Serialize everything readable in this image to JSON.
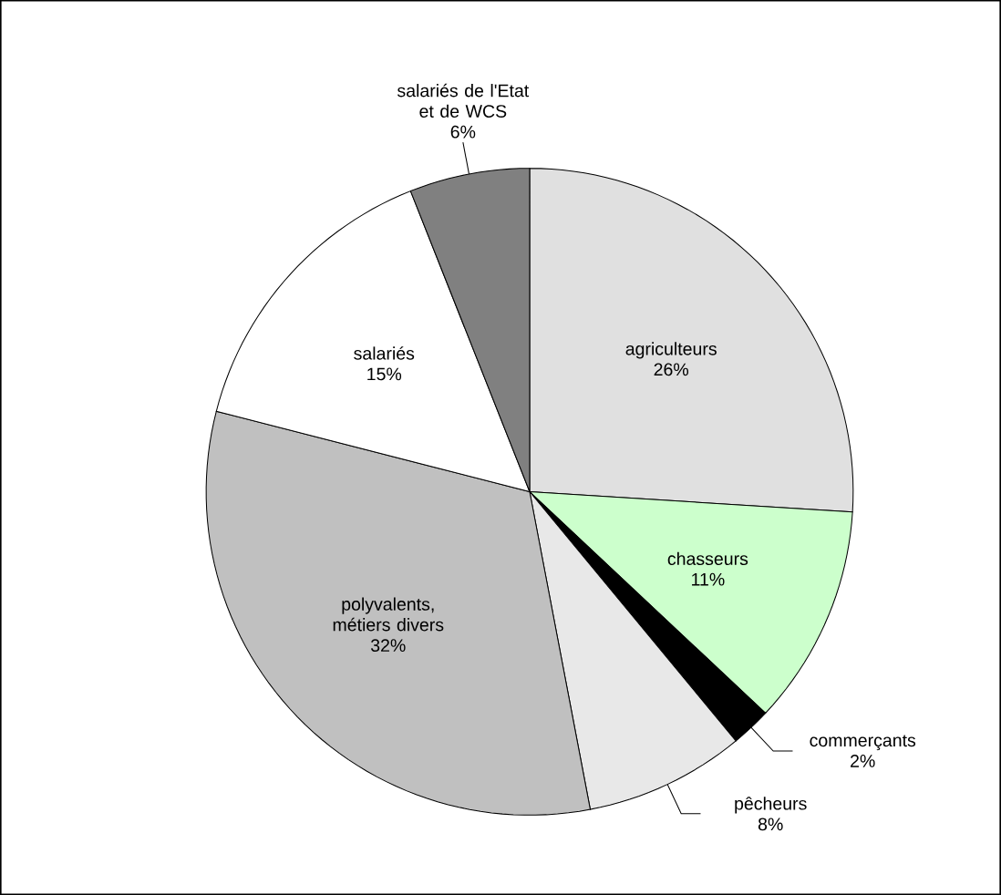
{
  "chart_data": {
    "type": "pie",
    "categories": [
      "agriculteurs",
      "chasseurs",
      "commerçants",
      "pêcheurs",
      "polyvalents, métiers divers",
      "salariés",
      "salariés de l'Etat et de WCS"
    ],
    "values": [
      26,
      11,
      2,
      8,
      32,
      15,
      6
    ],
    "colors": [
      "#e0e0e0",
      "#ccffcc",
      "#000000",
      "#e8e8e8",
      "#c0c0c0",
      "#ffffff",
      "#808080"
    ],
    "value_labels": [
      "26%",
      "11%",
      "2%",
      "8%",
      "32%",
      "15%",
      "6%"
    ]
  }
}
